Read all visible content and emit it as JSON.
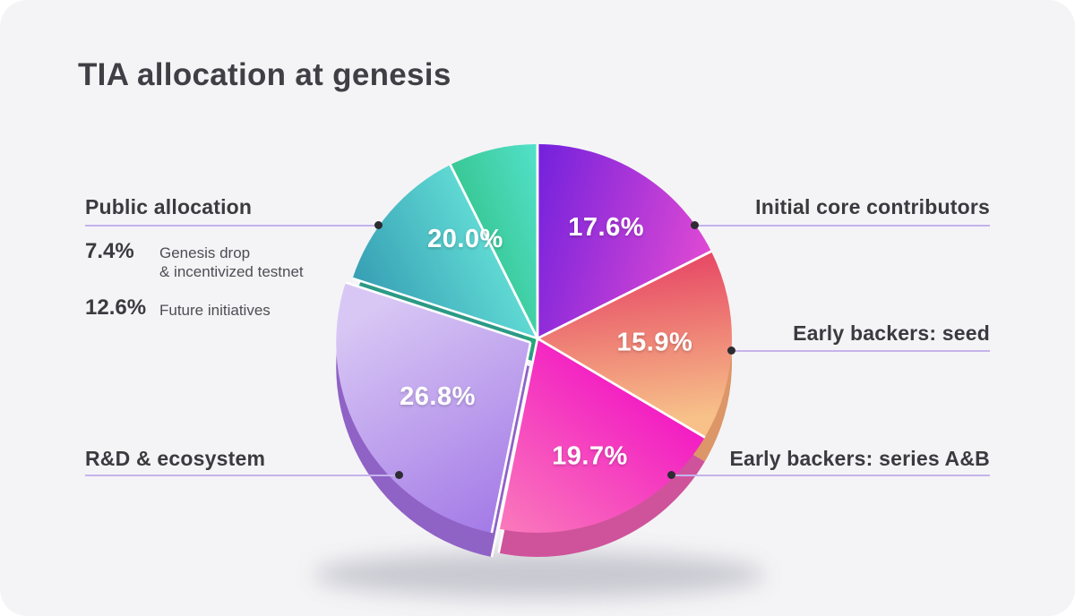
{
  "title": "TIA allocation at genesis",
  "chart_data": {
    "type": "pie",
    "title": "TIA allocation at genesis",
    "value_unit": "%",
    "start_angle_deg": 0,
    "direction": "clockwise",
    "total": 100,
    "slices": [
      {
        "name": "Initial core contributors",
        "value": 17.6,
        "display_label": "17.6%",
        "gradient": [
          "#6d1fdd",
          "#ef4fd2"
        ],
        "rim_color": "#5318ad",
        "exploded": false
      },
      {
        "name": "Early backers: seed",
        "value": 15.9,
        "display_label": "15.9%",
        "gradient": [
          "#e64163",
          "#f7c189"
        ],
        "rim_color": "#dc9668",
        "exploded": false
      },
      {
        "name": "Early backers: series A&B",
        "value": 19.7,
        "display_label": "19.7%",
        "gradient": [
          "#f215c4",
          "#fc93b8"
        ],
        "rim_color": "#cf539b",
        "exploded": false
      },
      {
        "name": "R&D & ecosystem",
        "value": 26.8,
        "display_label": "26.8%",
        "gradient": [
          "#d8c7f4",
          "#a176e6"
        ],
        "rim_color": "#8f62c6",
        "exploded": true
      },
      {
        "name": "Public allocation — Future initiatives",
        "value": 12.6,
        "display_label": "",
        "gradient": [
          "#379fb4",
          "#63ded6"
        ],
        "rim_color": "#2b9a85",
        "exploded": false
      },
      {
        "name": "Public allocation — Genesis drop & incentivized testnet",
        "value": 7.4,
        "display_label": "",
        "gradient": [
          "#35c48d",
          "#52e0c9"
        ],
        "rim_color": "#27a578",
        "exploded": false
      }
    ],
    "group_label": {
      "text": "20.0%",
      "total": 20.0,
      "mid_angle_deg": 324,
      "group": "Public allocation"
    },
    "value_label_color": "#ffffff"
  },
  "callouts": [
    {
      "label": "Public allocation",
      "side": "left"
    },
    {
      "label": "R&D & ecosystem",
      "side": "left"
    },
    {
      "label": "Initial core contributors",
      "side": "right"
    },
    {
      "label": "Early backers: seed",
      "side": "right"
    },
    {
      "label": "Early backers: series A&B",
      "side": "right"
    }
  ],
  "public_allocation_breakdown": {
    "items": [
      {
        "value": "7.4%",
        "label": "Genesis drop\n& incentivized testnet"
      },
      {
        "value": "12.6%",
        "label": "Future initiatives"
      }
    ]
  },
  "style_colors": {
    "card_background": "#f4f4f6",
    "connector_line": "#c5b3ec",
    "connector_dot": "#2c2c31",
    "heading_text": "#3f3f45",
    "muted_text": "#4d4d55"
  }
}
